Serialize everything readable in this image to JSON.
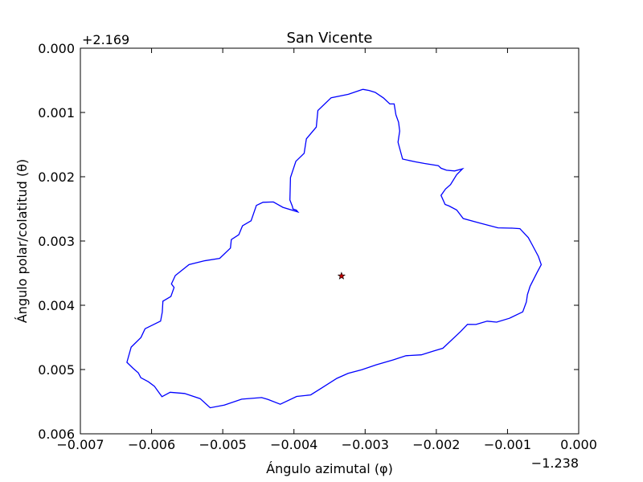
{
  "chart_data": {
    "type": "line",
    "title": "San Vicente",
    "xlabel": "Ángulo azimutal (φ)",
    "ylabel": "Ángulo polar/colatitud (θ)",
    "x_offset_label": "−1.238",
    "y_offset_label": "+2.169",
    "xlim": [
      -0.007,
      0.0
    ],
    "ylim": [
      0.006,
      0.0
    ],
    "y_inverted": true,
    "grid": false,
    "x_ticks": [
      -0.007,
      -0.006,
      -0.005,
      -0.004,
      -0.003,
      -0.002,
      -0.001,
      0.0
    ],
    "x_tick_labels": [
      "−0.007",
      "−0.006",
      "−0.005",
      "−0.004",
      "−0.003",
      "−0.002",
      "−0.001",
      "0.000"
    ],
    "y_ticks": [
      0.0,
      0.001,
      0.002,
      0.003,
      0.004,
      0.005,
      0.006
    ],
    "y_tick_labels": [
      "0.000",
      "0.001",
      "0.002",
      "0.003",
      "0.004",
      "0.005",
      "0.006"
    ],
    "series": [
      {
        "color": "#0000ff",
        "x": [
          -0.003034,
          -0.003236,
          -0.003477,
          -0.003664,
          -0.003686,
          -0.003825,
          -0.003857,
          -0.003973,
          -0.004049,
          -0.004057,
          -0.004022,
          -0.004014,
          -0.003966,
          -0.003945,
          -0.004155,
          -0.004289,
          -0.004435,
          -0.004527,
          -0.004602,
          -0.004723,
          -0.004775,
          -0.00488,
          -0.004892,
          -0.005043,
          -0.005263,
          -0.005473,
          -0.005667,
          -0.005721,
          -0.005683,
          -0.005729,
          -0.005841,
          -0.005849,
          -0.005873,
          -0.006091,
          -0.00615,
          -0.006286,
          -0.006346,
          -0.006259,
          -0.006186,
          -0.006151,
          -0.006045,
          -0.00596,
          -0.005904,
          -0.005854,
          -0.005739,
          -0.005537,
          -0.005318,
          -0.005177,
          -0.004978,
          -0.004734,
          -0.004454,
          -0.004364,
          -0.004192,
          -0.003962,
          -0.003765,
          -0.003623,
          -0.003397,
          -0.003239,
          -0.003047,
          -0.002844,
          -0.002606,
          -0.002426,
          -0.002211,
          -0.00204,
          -0.001908,
          -0.001657,
          -0.001563,
          -0.001443,
          -0.001286,
          -0.001153,
          -0.000973,
          -0.000786,
          -0.000735,
          -0.00072,
          -0.000683,
          -0.000587,
          -0.000526,
          -0.000567,
          -0.000661,
          -0.000708,
          -0.000827,
          -0.000934,
          -0.001134,
          -0.001397,
          -0.001622,
          -0.001714,
          -0.001821,
          -0.001876,
          -0.001934,
          -0.001871,
          -0.001801,
          -0.001714,
          -0.001631,
          -0.001743,
          -0.001857,
          -0.001934,
          -0.001972,
          -0.002165,
          -0.00229,
          -0.002474,
          -0.002538,
          -0.002514,
          -0.00253,
          -0.002567,
          -0.002592,
          -0.002653,
          -0.002742,
          -0.002859,
          -0.002944,
          -0.003034
        ],
        "y": [
          0.00064,
          0.000718,
          0.000771,
          0.000969,
          0.001227,
          0.00141,
          0.001635,
          0.00176,
          0.002013,
          0.002362,
          0.002463,
          0.002501,
          0.00252,
          0.002547,
          0.002476,
          0.002392,
          0.002398,
          0.002446,
          0.002685,
          0.002764,
          0.002902,
          0.002978,
          0.00311,
          0.00327,
          0.003309,
          0.003368,
          0.003538,
          0.003667,
          0.003723,
          0.003864,
          0.003936,
          0.004108,
          0.004246,
          0.004365,
          0.004503,
          0.004651,
          0.004887,
          0.004981,
          0.005051,
          0.005127,
          0.00519,
          0.00526,
          0.005347,
          0.005423,
          0.005354,
          0.005373,
          0.005452,
          0.005595,
          0.005554,
          0.005461,
          0.005436,
          0.005466,
          0.00554,
          0.005419,
          0.005395,
          0.005296,
          0.005137,
          0.00506,
          0.005003,
          0.004926,
          0.00485,
          0.004785,
          0.004771,
          0.004713,
          0.004669,
          0.004407,
          0.004297,
          0.004299,
          0.004248,
          0.004262,
          0.004202,
          0.004103,
          0.003948,
          0.003835,
          0.003705,
          0.003495,
          0.003368,
          0.003239,
          0.003044,
          0.002948,
          0.002807,
          0.0028,
          0.002795,
          0.002719,
          0.00265,
          0.002518,
          0.002455,
          0.002431,
          0.00229,
          0.002191,
          0.002122,
          0.001967,
          0.001876,
          0.00191,
          0.001899,
          0.001867,
          0.001828,
          0.001794,
          0.001769,
          0.001725,
          0.001463,
          0.001289,
          0.001153,
          0.001037,
          0.000868,
          0.000867,
          0.000774,
          0.000688,
          0.000658,
          0.00064
        ]
      }
    ],
    "marker": {
      "x": -0.003332,
      "y": 0.003545,
      "symbol": "star",
      "color": "#c00000"
    }
  }
}
